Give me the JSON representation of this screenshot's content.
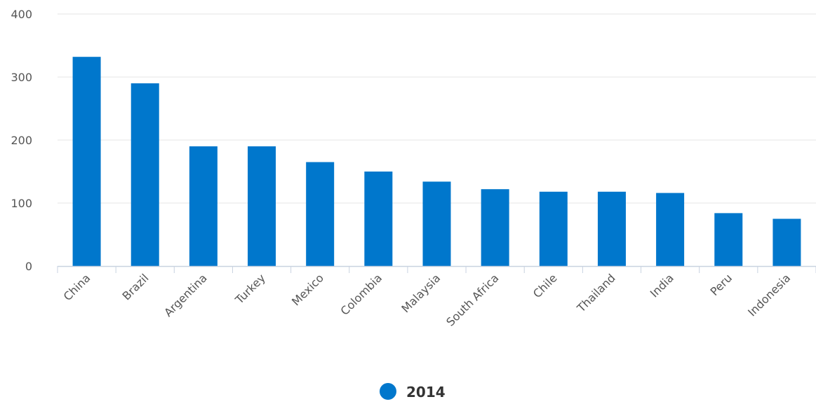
{
  "chart_data": {
    "type": "bar",
    "categories": [
      "China",
      "Brazil",
      "Argentina",
      "Turkey",
      "Mexico",
      "Colombia",
      "Malaysia",
      "South Africa",
      "Chile",
      "Thailand",
      "India",
      "Peru",
      "Indonesia"
    ],
    "series": [
      {
        "name": "2014",
        "color": "#0077CC",
        "values": [
          332,
          290,
          190,
          190,
          165,
          150,
          134,
          122,
          118,
          118,
          116,
          84,
          75
        ]
      }
    ],
    "ylim": [
      0,
      400
    ],
    "yticks": [
      0,
      100,
      200,
      300,
      400
    ],
    "grid": true,
    "legend_position": "bottom-center"
  }
}
